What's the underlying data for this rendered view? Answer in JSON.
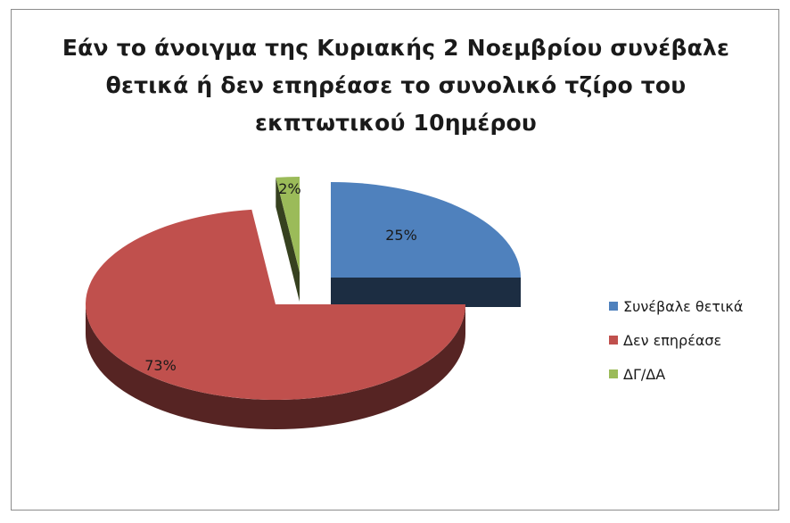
{
  "chart_data": {
    "type": "pie",
    "title_lines": [
      "Εάν το άνοιγμα της Κυριακής 2 Νοεμβρίου συνέβαλε",
      "θετικά ή δεν επηρέασε το συνολικό τζίρο του",
      "εκπτωτικού 10ημέρου"
    ],
    "slices": [
      {
        "label": "Συνέβαλε θετικά",
        "value": 25,
        "data_label": "25%",
        "color": "#4f81bd"
      },
      {
        "label": "Δεν επηρέασε",
        "value": 73,
        "data_label": "73%",
        "color": "#c0504d"
      },
      {
        "label": "ΔΓ/ΔΑ",
        "value": 2,
        "data_label": "2%",
        "color": "#9bbb59"
      }
    ],
    "style": "3d-exploded",
    "legend": "right"
  }
}
